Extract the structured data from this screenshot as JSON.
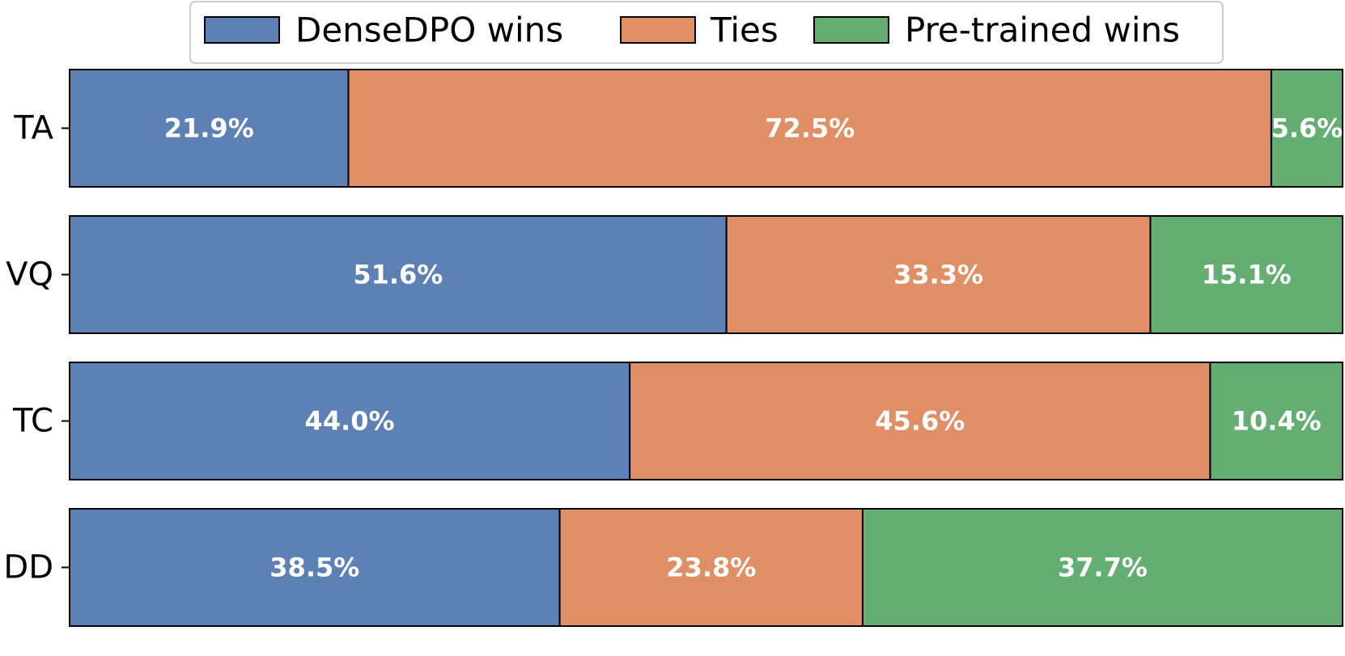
{
  "chart_data": {
    "type": "bar",
    "orientation": "horizontal",
    "stacked": true,
    "normalized_percent": true,
    "categories": [
      "TA",
      "VQ",
      "TC",
      "DD"
    ],
    "series": [
      {
        "name": "DenseDPO wins",
        "color": "#5d80b5",
        "values": [
          21.9,
          51.6,
          44.0,
          38.5
        ],
        "labels": [
          "21.9%",
          "51.6%",
          "44.0%",
          "38.5%"
        ]
      },
      {
        "name": "Ties",
        "color": "#df8e65",
        "values": [
          72.5,
          33.3,
          45.6,
          23.8
        ],
        "labels": [
          "72.5%",
          "33.3%",
          "45.6%",
          "23.8%"
        ]
      },
      {
        "name": "Pre-trained wins",
        "color": "#64ae73",
        "values": [
          5.6,
          15.1,
          10.4,
          37.7
        ],
        "labels": [
          "5.6%",
          "15.1%",
          "10.4%",
          "37.7%"
        ]
      }
    ],
    "xlim": [
      0,
      100
    ],
    "grid": false,
    "legend_position": "top-center",
    "title": "",
    "xlabel": "",
    "ylabel": ""
  }
}
